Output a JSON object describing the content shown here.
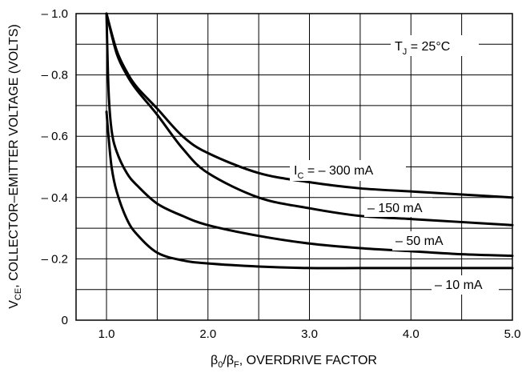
{
  "chart_data": {
    "type": "line",
    "title": "",
    "xlabel": {
      "beta": "β",
      "sub1": "0",
      "mid": "/β",
      "sub2": "F",
      "rest": ", OVERDRIVE FACTOR"
    },
    "ylabel": {
      "prefix": "V",
      "sub": "CE",
      "rest": ", COLLECTOR–EMITTER VOLTAGE (VOLTS)"
    },
    "annotation": {
      "prefix": "T",
      "sub": "J",
      "rest": " = 25°C"
    },
    "xlim": [
      0.7,
      5.0
    ],
    "ylim": [
      0,
      -1.0
    ],
    "x_ticks": [
      {
        "value": 1.0,
        "label": "1.0"
      },
      {
        "value": 2.0,
        "label": "2.0"
      },
      {
        "value": 3.0,
        "label": "3.0"
      },
      {
        "value": 4.0,
        "label": "4.0"
      },
      {
        "value": 5.0,
        "label": "5.0"
      }
    ],
    "y_ticks": [
      {
        "value": 0,
        "label": "0"
      },
      {
        "value": -0.2,
        "label": "– 0.2"
      },
      {
        "value": -0.4,
        "label": "– 0.4"
      },
      {
        "value": -0.6,
        "label": "– 0.6"
      },
      {
        "value": -0.8,
        "label": "– 0.8"
      },
      {
        "value": -1.0,
        "label": "– 1.0"
      }
    ],
    "grid": true,
    "series": [
      {
        "name": "– 300 mA",
        "label_prefix": "I",
        "label_sub": "C",
        "label_rest": " = – 300 mA",
        "x": [
          1.0,
          1.1,
          1.2,
          1.3,
          1.5,
          1.75,
          2.0,
          2.5,
          3.0,
          3.5,
          4.0,
          4.5,
          5.0
        ],
        "y": [
          -1.0,
          -0.88,
          -0.81,
          -0.76,
          -0.69,
          -0.6,
          -0.545,
          -0.48,
          -0.45,
          -0.43,
          -0.42,
          -0.41,
          -0.4
        ]
      },
      {
        "name": "– 150 mA",
        "label_prefix": "",
        "label_sub": "",
        "label_rest": "– 150 mA",
        "x": [
          1.0,
          1.1,
          1.2,
          1.3,
          1.5,
          1.75,
          2.0,
          2.5,
          3.0,
          3.5,
          4.0,
          4.5,
          5.0
        ],
        "y": [
          -1.0,
          -0.87,
          -0.8,
          -0.75,
          -0.67,
          -0.56,
          -0.48,
          -0.4,
          -0.365,
          -0.34,
          -0.33,
          -0.32,
          -0.31
        ]
      },
      {
        "name": "– 50 mA",
        "label_prefix": "",
        "label_sub": "",
        "label_rest": "– 50 mA",
        "x": [
          1.0,
          1.02,
          1.05,
          1.1,
          1.2,
          1.3,
          1.5,
          1.75,
          2.0,
          2.5,
          3.0,
          3.5,
          4.0,
          4.5,
          5.0
        ],
        "y": [
          -1.0,
          -0.75,
          -0.62,
          -0.55,
          -0.48,
          -0.44,
          -0.38,
          -0.34,
          -0.31,
          -0.275,
          -0.25,
          -0.235,
          -0.225,
          -0.215,
          -0.21
        ]
      },
      {
        "name": "– 10 mA",
        "label_prefix": "",
        "label_sub": "",
        "label_rest": "– 10 mA",
        "x": [
          1.0,
          1.02,
          1.05,
          1.1,
          1.2,
          1.3,
          1.5,
          1.75,
          2.0,
          2.5,
          3.0,
          3.5,
          4.0,
          4.5,
          5.0
        ],
        "y": [
          -0.68,
          -0.6,
          -0.5,
          -0.42,
          -0.33,
          -0.28,
          -0.22,
          -0.195,
          -0.185,
          -0.175,
          -0.17,
          -0.17,
          -0.17,
          -0.17,
          -0.17
        ]
      }
    ]
  }
}
